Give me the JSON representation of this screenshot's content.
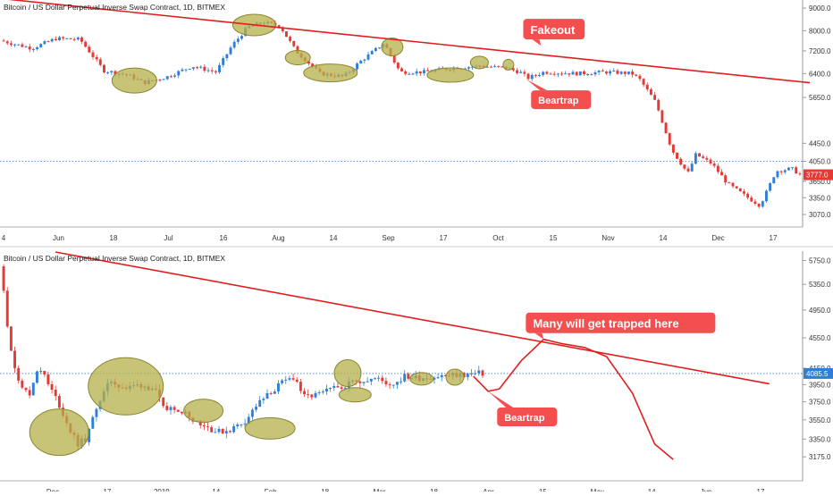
{
  "colors": {
    "up": "#2f7fd9",
    "down": "#e53935",
    "trendline": "#e01e1e",
    "ellipse_fill": "#b5b04a",
    "ellipse_stroke": "#8a8632",
    "callout_bg": "#f44f4f",
    "callout_text": "#ffffff",
    "price_line": "#2f7fd9",
    "axis_text": "#333333",
    "price_tag_red": "#e53935",
    "price_tag_blue": "#2f7fd9"
  },
  "chart_data": [
    {
      "type": "candlestick",
      "title": "Bitcoin / US Dollar Perpetual Inverse Swap Contract, 1D, BITMEX",
      "interval": "1D",
      "date_range": [
        "2018-05-24",
        "2018-12-24"
      ],
      "y_scale": "log",
      "ylim": [
        2850,
        9300
      ],
      "y_ticks": [
        "9000.0",
        "8000.0",
        "7200.0",
        "6400.0",
        "5650.0",
        "4450.0",
        "4050.0",
        "3650.0",
        "3350.0",
        "3070.0"
      ],
      "x_ticks": [
        "4",
        "Jun",
        "18",
        "Jul",
        "16",
        "Aug",
        "14",
        "Sep",
        "17",
        "Oct",
        "15",
        "Nov",
        "14",
        "Dec",
        "17"
      ],
      "last_price": "3777.0",
      "reference_price": 4050,
      "path": [
        [
          0,
          7600
        ],
        [
          0.02,
          7450
        ],
        [
          0.04,
          7300
        ],
        [
          0.07,
          7680
        ],
        [
          0.1,
          7650
        ],
        [
          0.13,
          6500
        ],
        [
          0.16,
          6350
        ],
        [
          0.18,
          6100
        ],
        [
          0.21,
          6300
        ],
        [
          0.24,
          6650
        ],
        [
          0.27,
          6450
        ],
        [
          0.29,
          7400
        ],
        [
          0.31,
          8150
        ],
        [
          0.33,
          8350
        ],
        [
          0.35,
          8200
        ],
        [
          0.37,
          7200
        ],
        [
          0.4,
          6400
        ],
        [
          0.43,
          6300
        ],
        [
          0.45,
          6800
        ],
        [
          0.48,
          7500
        ],
        [
          0.5,
          6450
        ],
        [
          0.53,
          6450
        ],
        [
          0.57,
          6600
        ],
        [
          0.6,
          6650
        ],
        [
          0.63,
          6600
        ],
        [
          0.65,
          6450
        ],
        [
          0.66,
          6250
        ],
        [
          0.68,
          6450
        ],
        [
          0.72,
          6400
        ],
        [
          0.76,
          6450
        ],
        [
          0.79,
          6400
        ],
        [
          0.8,
          6200
        ],
        [
          0.82,
          5500
        ],
        [
          0.84,
          4300
        ],
        [
          0.86,
          3800
        ],
        [
          0.87,
          4200
        ],
        [
          0.89,
          4000
        ],
        [
          0.91,
          3600
        ],
        [
          0.93,
          3400
        ],
        [
          0.95,
          3220
        ],
        [
          0.96,
          3500
        ],
        [
          0.97,
          3850
        ],
        [
          0.99,
          3900
        ],
        [
          1.0,
          3777
        ]
      ],
      "trendline": {
        "from": [
          "2018-05-17",
          9500
        ],
        "to": [
          "2018-12-28",
          6100
        ]
      },
      "highlighted_zones": [
        {
          "date": "2018-06-25",
          "price": 6170
        },
        {
          "date": "2018-07-28",
          "price": 8240
        },
        {
          "date": "2018-08-09",
          "price": 6950
        },
        {
          "date": "2018-08-18",
          "price": 6420
        },
        {
          "date": "2018-09-04",
          "price": 7350
        },
        {
          "date": "2018-09-20",
          "price": 6350
        },
        {
          "date": "2018-09-28",
          "price": 6780
        },
        {
          "date": "2018-10-06",
          "price": 6700
        }
      ],
      "annotations": [
        {
          "label": "Fakeout",
          "date": "2018-10-15",
          "price": 7400
        },
        {
          "label": "Beartrap",
          "date": "2018-10-11",
          "price": 6200
        }
      ]
    },
    {
      "type": "candlestick_with_projection",
      "title": "Bitcoin / US Dollar Perpetual Inverse Swap Contract, 1D, BITMEX",
      "interval": "1D",
      "y_scale": "log",
      "ylim": [
        3050,
        5900
      ],
      "y_ticks": [
        "5750.0",
        "5350.0",
        "4950.0",
        "4550.0",
        "4150.0",
        "3950.0",
        "3750.0",
        "3550.0",
        "3350.0",
        "3175.0"
      ],
      "x_ticks": [
        "Dec",
        "17",
        "2019",
        "14",
        "Feb",
        "18",
        "Mar",
        "18",
        "Apr",
        "15",
        "May",
        "14",
        "Jun",
        "17"
      ],
      "last_price": "4085.5",
      "reference_price": 4085,
      "path": [
        [
          0,
          5650
        ],
        [
          0.01,
          5200
        ],
        [
          0.02,
          4400
        ],
        [
          0.04,
          4000
        ],
        [
          0.06,
          3800
        ],
        [
          0.08,
          4200
        ],
        [
          0.1,
          3950
        ],
        [
          0.12,
          3750
        ],
        [
          0.14,
          3500
        ],
        [
          0.16,
          3300
        ],
        [
          0.18,
          3350
        ],
        [
          0.2,
          3700
        ],
        [
          0.23,
          4000
        ],
        [
          0.26,
          3900
        ],
        [
          0.29,
          3950
        ],
        [
          0.32,
          3900
        ],
        [
          0.34,
          3650
        ],
        [
          0.36,
          3700
        ],
        [
          0.39,
          3600
        ],
        [
          0.42,
          3500
        ],
        [
          0.45,
          3420
        ],
        [
          0.48,
          3450
        ],
        [
          0.51,
          3550
        ],
        [
          0.53,
          3700
        ],
        [
          0.55,
          3800
        ],
        [
          0.58,
          3950
        ],
        [
          0.61,
          4050
        ],
        [
          0.63,
          3800
        ],
        [
          0.66,
          3830
        ],
        [
          0.7,
          3920
        ],
        [
          0.74,
          4000
        ],
        [
          0.78,
          4020
        ],
        [
          0.81,
          3950
        ],
        [
          0.84,
          4050
        ],
        [
          0.86,
          4030
        ],
        [
          1.0,
          4085
        ]
      ],
      "trendline": {
        "from": [
          "2018-12-09",
          5900
        ],
        "to": [
          "2019-06-20",
          3960
        ]
      },
      "projection": [
        [
          "2019-04-01",
          4050
        ],
        [
          "2019-04-03",
          3960
        ],
        [
          "2019-04-05",
          3870
        ],
        [
          "2019-04-08",
          3900
        ],
        [
          "2019-04-14",
          4250
        ],
        [
          "2019-04-20",
          4530
        ],
        [
          "2019-04-25",
          4470
        ],
        [
          "2019-05-01",
          4420
        ],
        [
          "2019-05-07",
          4300
        ],
        [
          "2019-05-14",
          3850
        ],
        [
          "2019-05-20",
          3300
        ],
        [
          "2019-05-25",
          3150
        ]
      ],
      "highlighted_zones": [
        {
          "date": "2018-12-10",
          "price": 3420
        },
        {
          "date": "2018-12-28",
          "price": 3930
        },
        {
          "date": "2019-01-18",
          "price": 3650
        },
        {
          "date": "2019-02-05",
          "price": 3460
        },
        {
          "date": "2019-02-26",
          "price": 4090
        },
        {
          "date": "2019-02-28",
          "price": 3830
        },
        {
          "date": "2019-03-18",
          "price": 4020
        },
        {
          "date": "2019-03-27",
          "price": 4040
        }
      ],
      "annotations": [
        {
          "label": "Many will get trapped here",
          "date": "2019-04-20",
          "price": 4530
        },
        {
          "label": "Beartrap",
          "date": "2019-04-05",
          "price": 3870
        }
      ]
    }
  ]
}
